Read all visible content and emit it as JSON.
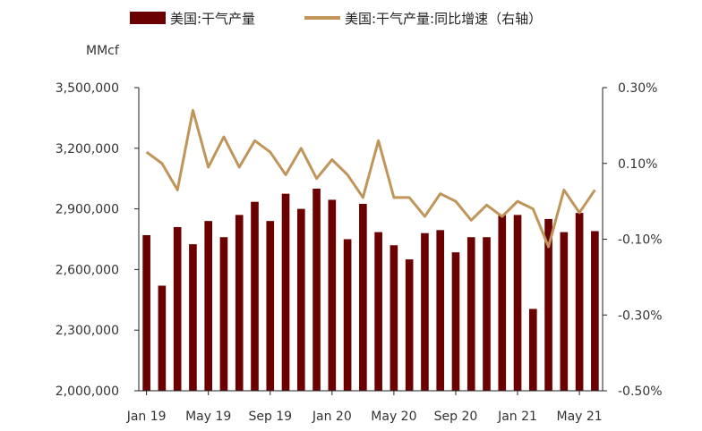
{
  "chart_data": {
    "type": "bar+line",
    "title": "",
    "left_unit": "MMcf",
    "x": [
      "Jan 19",
      "Feb 19",
      "Mar 19",
      "Apr 19",
      "May 19",
      "Jun 19",
      "Jul 19",
      "Aug 19",
      "Sep 19",
      "Oct 19",
      "Nov 19",
      "Dec 19",
      "Jan 20",
      "Feb 20",
      "Mar 20",
      "Apr 20",
      "May 20",
      "Jun 20",
      "Jul 20",
      "Aug 20",
      "Sep 20",
      "Oct 20",
      "Nov 20",
      "Dec 20",
      "Jan 21",
      "Feb 21",
      "Mar 21",
      "Apr 21",
      "May 21",
      "Jun 21"
    ],
    "x_tick_labels": [
      "Jan 19",
      "May 19",
      "Sep 19",
      "Jan 20",
      "May 20",
      "Sep 20",
      "Jan 21",
      "May 21"
    ],
    "x_tick_indices": [
      0,
      4,
      8,
      12,
      16,
      20,
      24,
      28
    ],
    "series": [
      {
        "name": "美国:干气产量",
        "axis": "left",
        "kind": "bar",
        "color": "#6b0000",
        "values": [
          2770000,
          2520000,
          2810000,
          2725000,
          2840000,
          2760000,
          2870000,
          2935000,
          2840000,
          2975000,
          2900000,
          3000000,
          2945000,
          2750000,
          2925000,
          2785000,
          2720000,
          2650000,
          2780000,
          2795000,
          2685000,
          2760000,
          2760000,
          2870000,
          2870000,
          2405000,
          2850000,
          2785000,
          2880000,
          2790000
        ]
      },
      {
        "name": "美国:干气产量:同比增速（右轴）",
        "axis": "right",
        "kind": "line",
        "color": "#c0955a",
        "values": [
          0.13,
          0.1,
          0.03,
          0.24,
          0.09,
          0.17,
          0.09,
          0.16,
          0.13,
          0.07,
          0.14,
          0.06,
          0.11,
          0.07,
          0.01,
          0.16,
          0.01,
          0.01,
          -0.04,
          0.02,
          0.0,
          -0.05,
          -0.01,
          -0.04,
          0.0,
          -0.02,
          -0.12,
          0.03,
          -0.03,
          0.03
        ]
      }
    ],
    "left_axis": {
      "min": 2000000,
      "max": 3500000,
      "ticks": [
        2000000,
        2300000,
        2600000,
        2900000,
        3200000,
        3500000
      ],
      "tick_labels": [
        "2,000,000",
        "2,300,000",
        "2,600,000",
        "2,900,000",
        "3,200,000",
        "3,500,000"
      ]
    },
    "right_axis": {
      "min": -0.5,
      "max": 0.3,
      "ticks": [
        -0.5,
        -0.3,
        -0.1,
        0.1,
        0.3
      ],
      "tick_labels": [
        "-0.50%",
        "-0.30%",
        "-0.10%",
        "0.10%",
        "0.30%"
      ]
    },
    "grid": false,
    "legend_position": "top"
  }
}
